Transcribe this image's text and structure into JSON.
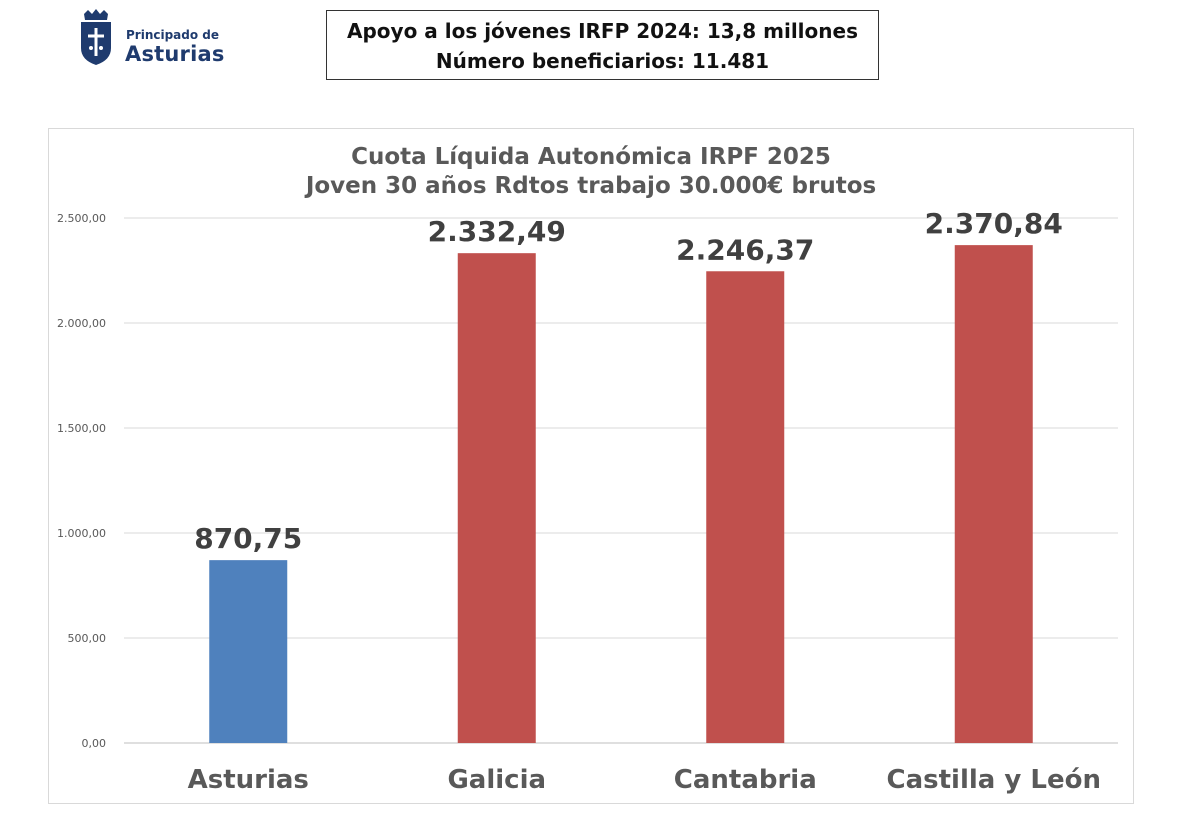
{
  "logo": {
    "line1": "Principado de",
    "line2": "Asturias"
  },
  "info": {
    "line1": "Apoyo a los jóvenes IRFP 2024: 13,8 millones",
    "line2": "Número beneficiarios: 11.481"
  },
  "chart_data": {
    "type": "bar",
    "title": "Cuota Líquida Autonómica IRPF 2025",
    "subtitle": "Joven 30 años Rdtos trabajo 30.000€ brutos",
    "categories": [
      "Asturias",
      "Galicia",
      "Cantabria",
      "Castilla y León"
    ],
    "values": [
      870.75,
      2332.49,
      2246.37,
      2370.84
    ],
    "value_labels": [
      "870,75",
      "2.332,49",
      "2.246,37",
      "2.370,84"
    ],
    "colors": [
      "#4f81bd",
      "#c0504d",
      "#c0504d",
      "#c0504d"
    ],
    "ylim": [
      0,
      2500
    ],
    "yticks": [
      0,
      500,
      1000,
      1500,
      2000,
      2500
    ],
    "ytick_labels": [
      "0,00",
      "500,00",
      "1.000,00",
      "1.500,00",
      "2.000,00",
      "2.500,00"
    ],
    "grid": true,
    "xlabel": "",
    "ylabel": ""
  }
}
